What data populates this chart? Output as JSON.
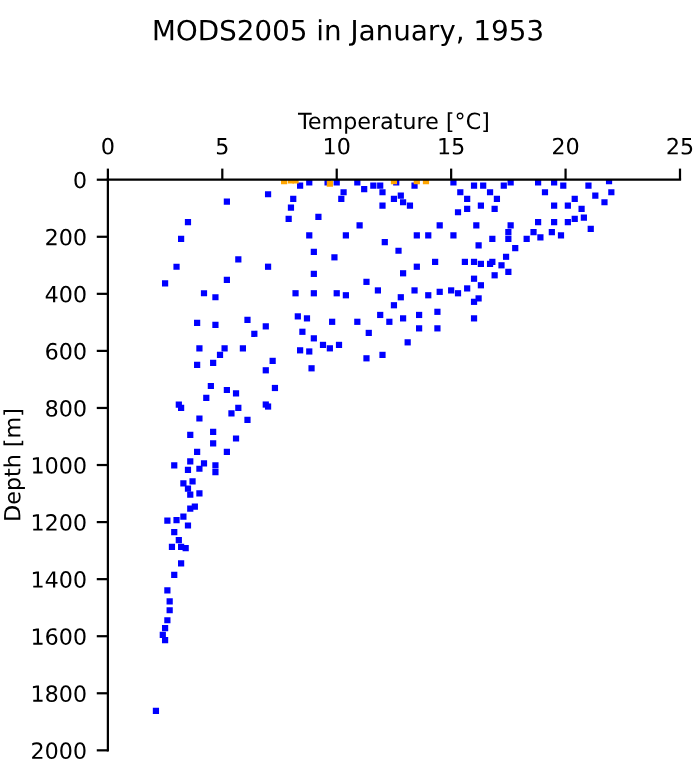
{
  "chart_data": {
    "type": "scatter",
    "title": "MODS2005 in January, 1953",
    "xlabel": "Temperature [°C]",
    "ylabel": "Depth [m]",
    "xlim": [
      0,
      25
    ],
    "xticks": [
      0,
      5,
      10,
      15,
      20,
      25
    ],
    "ylim": [
      2000,
      0
    ],
    "yticks": [
      0,
      200,
      400,
      600,
      800,
      1000,
      1200,
      1400,
      1600,
      1800,
      2000
    ],
    "grid": false,
    "legend": false,
    "marker": "square",
    "series": [
      {
        "color": "#0000ff",
        "x": [
          5.2,
          3.5,
          3.2,
          3.0,
          2.5,
          4.2,
          4.7,
          5.7,
          5.2,
          7.0,
          7.0,
          3.9,
          4.7,
          6.1,
          6.9,
          6.4,
          4.0,
          5.1,
          5.9,
          3.9,
          4.6,
          4.9,
          7.2,
          6.9,
          4.5,
          7.3,
          5.2,
          5.6,
          3.1,
          4.3,
          6.9,
          3.2,
          3.6,
          4.0,
          4.6,
          5.4,
          5.7,
          6.1,
          7.0,
          5.6,
          5.2,
          3.9,
          4.6,
          2.9,
          3.6,
          4.2,
          4.7,
          3.5,
          4.0,
          4.7,
          3.3,
          3.7,
          3.5,
          4.0,
          3.6,
          3.8,
          3.6,
          2.6,
          3.3,
          3.5,
          3.0,
          2.9,
          3.1,
          3.2,
          2.8,
          3.4,
          3.2,
          2.9,
          2.6,
          2.7,
          2.7,
          2.6,
          2.5,
          2.4,
          2.5,
          2.1,
          8.0,
          7.9,
          8.1,
          8.8,
          9.2,
          9.0,
          9.0,
          9.9,
          10.4,
          11.0,
          8.2,
          9.0,
          8.3,
          8.7,
          10.0,
          10.4,
          11.3,
          11.8,
          8.5,
          9.0,
          9.4,
          9.7,
          10.1,
          9.8,
          10.9,
          11.4,
          8.9,
          8.4,
          8.8,
          11.3,
          12.0,
          11.9,
          12.1,
          12.7,
          12.9,
          13.5,
          12.5,
          12.8,
          13.4,
          14.0,
          12.3,
          12.9,
          13.6,
          14.4,
          13.1,
          13.6,
          14.4,
          13.5,
          14.0,
          14.3,
          14.5,
          15.0,
          15.3,
          15.6,
          15.7,
          16.3,
          14.5,
          15.1,
          16.1,
          16.2,
          16.8,
          16.8,
          16.0,
          16.0,
          16.0,
          16.2,
          16.0,
          16.3,
          16.7,
          17.2,
          17.4,
          17.5,
          16.9,
          17.5,
          17.8,
          17.5,
          17.6,
          18.3,
          18.6,
          18.9,
          19.4,
          18.8,
          19.5,
          20.1,
          20.4,
          20.8,
          19.8,
          21.1,
          21.7,
          22.0,
          21.9,
          8.4,
          8.8,
          9.6,
          10.0,
          10.3,
          10.2,
          10.9,
          11.2,
          11.6,
          12.0,
          12.5,
          12.9,
          13.2,
          12.6,
          13.4,
          12.0,
          12.8,
          11.9,
          15.1,
          15.4,
          15.7,
          16.0,
          16.3,
          16.7,
          17.0,
          17.3,
          17.6,
          15.3,
          15.7,
          16.9,
          16.4,
          18.8,
          19.1,
          19.5,
          19.9,
          20.4,
          20.7,
          21.0,
          21.3,
          19.5,
          20.1
        ],
        "values": [
          77,
          149,
          207,
          305,
          363,
          398,
          412,
          279,
          351,
          305,
          51,
          502,
          509,
          491,
          514,
          540,
          591,
          591,
          591,
          649,
          642,
          614,
          635,
          668,
          723,
          730,
          737,
          749,
          788,
          765,
          788,
          800,
          894,
          837,
          884,
          819,
          800,
          842,
          795,
          907,
          954,
          954,
          924,
          1001,
          987,
          994,
          1001,
          1017,
          1013,
          1025,
          1064,
          1057,
          1083,
          1099,
          1104,
          1146,
          1153,
          1195,
          1181,
          1212,
          1193,
          1235,
          1263,
          1287,
          1287,
          1291,
          1345,
          1385,
          1439,
          1478,
          1509,
          1544,
          1572,
          1595,
          1614,
          1862,
          98,
          137,
          67,
          195,
          130,
          253,
          330,
          272,
          195,
          160,
          398,
          398,
          479,
          486,
          398,
          405,
          358,
          388,
          533,
          556,
          579,
          591,
          579,
          498,
          498,
          537,
          661,
          598,
          602,
          626,
          614,
          474,
          219,
          249,
          328,
          305,
          440,
          412,
          388,
          405,
          498,
          486,
          474,
          463,
          570,
          521,
          521,
          195,
          195,
          288,
          393,
          388,
          398,
          288,
          381,
          370,
          160,
          195,
          160,
          230,
          207,
          288,
          288,
          347,
          486,
          416,
          428,
          295,
          295,
          300,
          270,
          207,
          335,
          323,
          240,
          184,
          160,
          207,
          184,
          202,
          184,
          149,
          149,
          149,
          137,
          133,
          195,
          172,
          79,
          44,
          5,
          21,
          9,
          9,
          9,
          44,
          67,
          9,
          33,
          21,
          44,
          67,
          79,
          91,
          9,
          21,
          91,
          56,
          21,
          9,
          44,
          67,
          21,
          91,
          44,
          67,
          21,
          9,
          114,
          102,
          102,
          21,
          9,
          44,
          91,
          21,
          67,
          102,
          21,
          56,
          9,
          91
        ]
      },
      {
        "color": "#ffa500",
        "x": [
          7.7,
          8.0,
          8.2,
          9.7,
          12.5,
          13.5,
          13.9
        ],
        "values": [
          5,
          2,
          2,
          14,
          5,
          5,
          5
        ]
      }
    ]
  }
}
